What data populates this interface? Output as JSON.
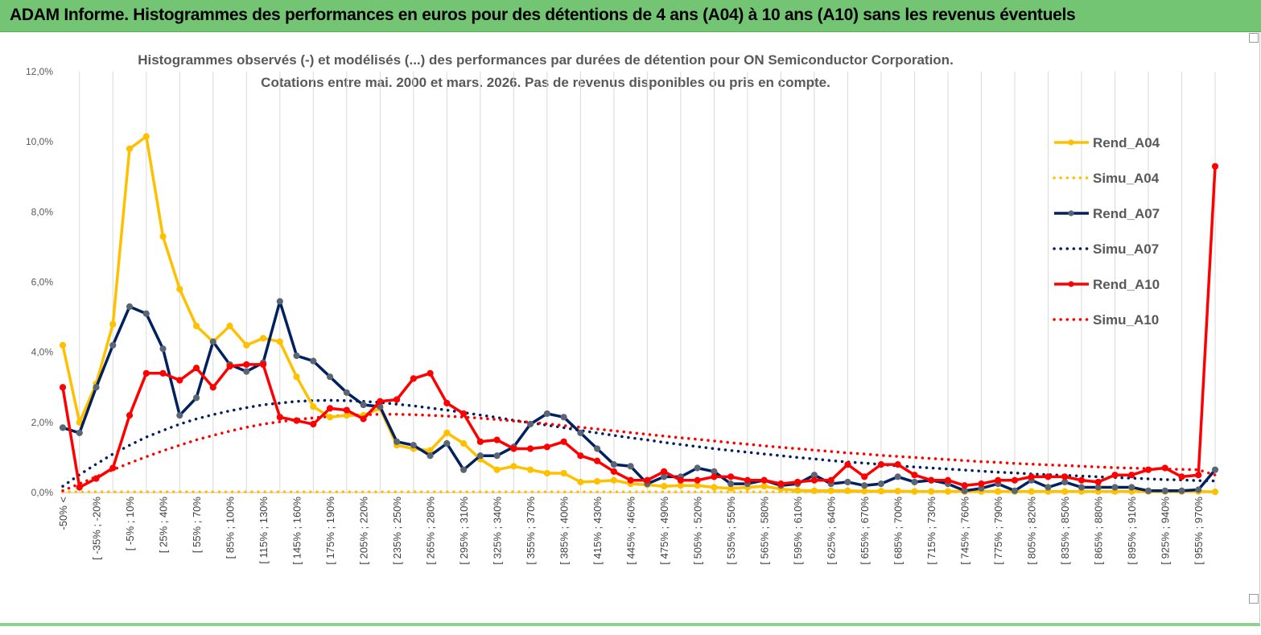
{
  "banner": {
    "title": "ADAM Informe. Histogrammes des performances en euros pour des détentions de 4 ans (A04) à 10 ans (A10) sans les revenus éventuels"
  },
  "colors": {
    "banner_bg": "#73c574",
    "A04": "#ffc000",
    "A07": "#002060",
    "A10": "#ff0000",
    "marker_A07": "#5a6675"
  },
  "chart_data": {
    "type": "line",
    "title": "Histogrammes observés (-) et modélisés (...) des performances par durées de détention pour ON Semiconductor Corporation.",
    "subtitle": "Cotations entre mai. 2000 et mars. 2026. Pas de revenus disponibles ou pris en compte.",
    "xlabel": "",
    "ylabel": "",
    "ylim": [
      0,
      12
    ],
    "y_ticks": [
      "0,0%",
      "2,0%",
      "4,0%",
      "6,0%",
      "8,0%",
      "10,0%",
      "12,0%"
    ],
    "grid": "vertical",
    "legend_position": "right",
    "x_tick_labels": [
      "-50% <",
      "[ -35% ; -20%",
      "[ -5% ; 10%",
      "[ 25% ; 40%",
      "[ 55% ; 70%",
      "[ 85% ; 100%",
      "[ 115% ; 130%",
      "[ 145% ; 160%",
      "[ 175% ; 190%",
      "[ 205% ; 220%",
      "[ 235% ; 250%",
      "[ 265% ; 280%",
      "[ 295% ; 310%",
      "[ 325% ; 340%",
      "[ 355% ; 370%",
      "[ 385% ; 400%",
      "[ 415% ; 430%",
      "[ 445% ; 460%",
      "[ 475% ; 490%",
      "[ 505% ; 520%",
      "[ 535% ; 550%",
      "[ 565% ; 580%",
      "[ 595% ; 610%",
      "[ 625% ; 640%",
      "[ 655% ; 670%",
      "[ 685% ; 700%",
      "[ 715% ; 730%",
      "[ 745% ; 760%",
      "[ 775% ; 790%",
      "[ 805% ; 820%",
      "[ 835% ; 850%",
      "[ 865% ; 880%",
      "[ 895% ; 910%",
      "[ 925% ; 940%",
      "[ 955% ; 970%"
    ],
    "series": [
      {
        "name": "Rend_A04",
        "style": "solid",
        "color": "#ffc000",
        "values": [
          4.2,
          2.0,
          3.1,
          4.8,
          9.8,
          10.15,
          7.3,
          5.8,
          4.75,
          4.3,
          4.75,
          4.2,
          4.4,
          4.3,
          3.3,
          2.45,
          2.15,
          2.2,
          2.2,
          2.4,
          1.35,
          1.25,
          1.2,
          1.7,
          1.4,
          0.95,
          0.65,
          0.75,
          0.65,
          0.55,
          0.55,
          0.3,
          0.32,
          0.35,
          0.25,
          0.22,
          0.18,
          0.2,
          0.2,
          0.15,
          0.12,
          0.15,
          0.18,
          0.1,
          0.06,
          0.05,
          0.05,
          0.05,
          0.04,
          0.04,
          0.04,
          0.03,
          0.03,
          0.03,
          0.03,
          0.03,
          0.03,
          0.03,
          0.03,
          0.03,
          0.03,
          0.03,
          0.03,
          0.03,
          0.03,
          0.03,
          0.03,
          0.03,
          0.03,
          0.02
        ]
      },
      {
        "name": "Simu_A04",
        "style": "dotted",
        "color": "#ffc000",
        "values": [
          0.02,
          0.02,
          0.02,
          0.02,
          0.02,
          0.02,
          0.02,
          0.02,
          0.02,
          0.02,
          0.02,
          0.02,
          0.02,
          0.02,
          0.02,
          0.02,
          0.02,
          0.02,
          0.02,
          0.02,
          0.02,
          0.02,
          0.02,
          0.02,
          0.02,
          0.02,
          0.02,
          0.02,
          0.02,
          0.02,
          0.02,
          0.02,
          0.02,
          0.02,
          0.02,
          0.02,
          0.02,
          0.02,
          0.02,
          0.02,
          0.02,
          0.02,
          0.02,
          0.02,
          0.02,
          0.02,
          0.02,
          0.02,
          0.02,
          0.02,
          0.02,
          0.02,
          0.02,
          0.02,
          0.02,
          0.02,
          0.02,
          0.02,
          0.02,
          0.02,
          0.02,
          0.02,
          0.02,
          0.02,
          0.02,
          0.02,
          0.02,
          0.02,
          0.02,
          0.02
        ]
      },
      {
        "name": "Rend_A07",
        "style": "solid",
        "color": "#002060",
        "values": [
          1.85,
          1.7,
          3.0,
          4.2,
          5.3,
          5.1,
          4.1,
          2.2,
          2.7,
          4.3,
          3.65,
          3.45,
          3.7,
          5.45,
          3.9,
          3.75,
          3.3,
          2.85,
          2.5,
          2.45,
          1.45,
          1.35,
          1.05,
          1.4,
          0.65,
          1.05,
          1.05,
          1.3,
          1.95,
          2.25,
          2.15,
          1.7,
          1.25,
          0.8,
          0.75,
          0.25,
          0.45,
          0.45,
          0.7,
          0.6,
          0.25,
          0.25,
          0.35,
          0.2,
          0.25,
          0.5,
          0.25,
          0.3,
          0.2,
          0.25,
          0.45,
          0.3,
          0.35,
          0.25,
          0.05,
          0.12,
          0.25,
          0.05,
          0.35,
          0.15,
          0.3,
          0.15,
          0.15,
          0.15,
          0.15,
          0.05,
          0.05,
          0.05,
          0.08,
          0.65
        ]
      },
      {
        "name": "Simu_A07",
        "style": "dotted",
        "color": "#002060",
        "values": [
          0.18,
          0.51,
          0.81,
          1.1,
          1.35,
          1.58,
          1.77,
          1.95,
          2.1,
          2.22,
          2.33,
          2.42,
          2.5,
          2.55,
          2.6,
          2.62,
          2.63,
          2.62,
          2.6,
          2.57,
          2.52,
          2.47,
          2.41,
          2.35,
          2.28,
          2.21,
          2.14,
          2.06,
          1.99,
          1.92,
          1.85,
          1.77,
          1.7,
          1.63,
          1.56,
          1.5,
          1.43,
          1.37,
          1.31,
          1.25,
          1.2,
          1.15,
          1.1,
          1.05,
          1.0,
          0.96,
          0.91,
          0.87,
          0.84,
          0.8,
          0.76,
          0.73,
          0.7,
          0.67,
          0.64,
          0.61,
          0.58,
          0.56,
          0.53,
          0.51,
          0.49,
          0.47,
          0.45,
          0.43,
          0.41,
          0.39,
          0.37,
          0.36,
          0.34,
          0.33
        ]
      },
      {
        "name": "Rend_A10",
        "style": "solid",
        "color": "#ff0000",
        "values": [
          3.0,
          0.15,
          0.4,
          0.7,
          2.2,
          3.4,
          3.4,
          3.2,
          3.55,
          3.0,
          3.6,
          3.65,
          3.65,
          2.15,
          2.05,
          1.95,
          2.4,
          2.35,
          2.1,
          2.6,
          2.65,
          3.25,
          3.4,
          2.55,
          2.25,
          1.45,
          1.5,
          1.25,
          1.25,
          1.3,
          1.45,
          1.05,
          0.9,
          0.6,
          0.35,
          0.35,
          0.6,
          0.35,
          0.35,
          0.45,
          0.45,
          0.35,
          0.35,
          0.25,
          0.3,
          0.35,
          0.35,
          0.8,
          0.45,
          0.8,
          0.8,
          0.5,
          0.35,
          0.35,
          0.2,
          0.25,
          0.35,
          0.35,
          0.45,
          0.45,
          0.45,
          0.35,
          0.3,
          0.5,
          0.5,
          0.65,
          0.7,
          0.45,
          0.5,
          9.3
        ]
      },
      {
        "name": "Simu_A10",
        "style": "dotted",
        "color": "#ff0000",
        "values": [
          0.05,
          0.25,
          0.45,
          0.65,
          0.84,
          1.02,
          1.19,
          1.35,
          1.5,
          1.63,
          1.75,
          1.86,
          1.95,
          2.02,
          2.08,
          2.13,
          2.17,
          2.2,
          2.22,
          2.23,
          2.23,
          2.22,
          2.2,
          2.18,
          2.15,
          2.12,
          2.08,
          2.04,
          2.0,
          1.96,
          1.91,
          1.86,
          1.81,
          1.76,
          1.71,
          1.66,
          1.61,
          1.56,
          1.52,
          1.47,
          1.42,
          1.38,
          1.33,
          1.29,
          1.25,
          1.21,
          1.17,
          1.13,
          1.1,
          1.06,
          1.03,
          1.0,
          0.97,
          0.94,
          0.91,
          0.88,
          0.86,
          0.83,
          0.81,
          0.79,
          0.77,
          0.75,
          0.73,
          0.71,
          0.7,
          0.68,
          0.67,
          0.66,
          0.65,
          0.5
        ]
      }
    ]
  }
}
